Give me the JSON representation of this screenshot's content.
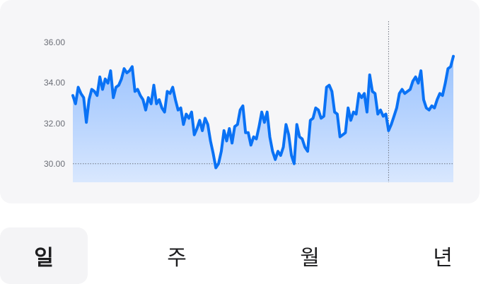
{
  "chart_data": {
    "type": "area",
    "y_ticks": [
      "30.00",
      "32.00",
      "34.00",
      "36.00"
    ],
    "ylim": [
      29.1,
      36.9
    ],
    "grid": false,
    "reference_line": {
      "y": 30.0,
      "style": "dotted"
    },
    "cursor_index": 117,
    "line_color": "#0a72f5",
    "series": [
      {
        "values": [
          33.3,
          32.9,
          33.7,
          33.4,
          33.2,
          32.0,
          33.1,
          33.6,
          33.5,
          33.3,
          34.2,
          33.6,
          34.1,
          33.9,
          34.5,
          33.2,
          33.7,
          33.8,
          34.1,
          34.6,
          34.4,
          34.5,
          34.7,
          33.5,
          33.6,
          33.3,
          33.1,
          32.6,
          33.2,
          32.9,
          33.8,
          32.9,
          33.1,
          32.7,
          32.5,
          33.5,
          33.4,
          33.7,
          33.1,
          32.6,
          32.7,
          31.9,
          32.4,
          32.2,
          32.5,
          31.4,
          31.7,
          32.1,
          31.6,
          32.2,
          31.9,
          31.1,
          30.5,
          29.8,
          30.0,
          30.6,
          31.6,
          31.1,
          31.7,
          31.0,
          31.8,
          31.9,
          32.6,
          32.8,
          31.5,
          31.5,
          30.9,
          31.3,
          31.2,
          31.8,
          32.5,
          32.0,
          32.5,
          31.3,
          30.6,
          30.2,
          30.6,
          30.4,
          30.8,
          31.9,
          31.4,
          30.4,
          30.0,
          31.9,
          31.3,
          31.2,
          30.8,
          30.6,
          32.1,
          32.2,
          32.7,
          32.6,
          32.2,
          32.3,
          33.7,
          33.8,
          33.5,
          32.5,
          32.4,
          31.3,
          31.4,
          31.5,
          32.7,
          32.1,
          32.5,
          32.4,
          33.4,
          33.2,
          33.4,
          32.5,
          34.3,
          33.5,
          33.4,
          32.4,
          32.6,
          32.3,
          32.4,
          31.6,
          31.9,
          32.3,
          32.7,
          33.4,
          33.6,
          33.4,
          33.5,
          33.6,
          34.0,
          34.2,
          33.9,
          34.5,
          33.1,
          32.7,
          32.6,
          32.8,
          32.7,
          33.1,
          33.4,
          33.3,
          33.9,
          34.6,
          34.7,
          35.2
        ]
      }
    ]
  },
  "tabs": [
    {
      "label": "일",
      "selected": true
    },
    {
      "label": "주",
      "selected": false
    },
    {
      "label": "월",
      "selected": false
    },
    {
      "label": "년",
      "selected": false
    }
  ]
}
